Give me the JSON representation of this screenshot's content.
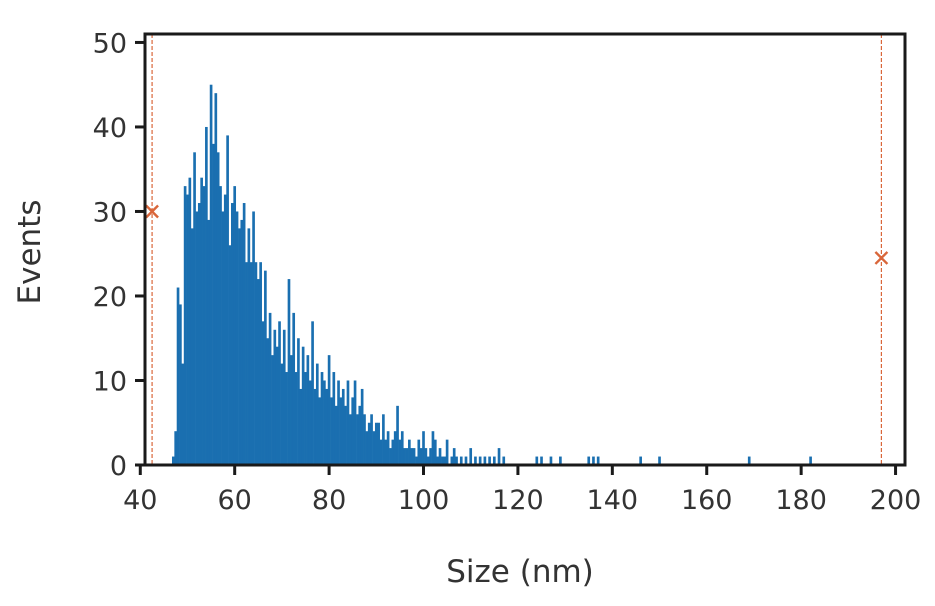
{
  "chart_data": {
    "type": "bar",
    "xlabel": "Size (nm)",
    "ylabel": "Events",
    "xlim": [
      41,
      202
    ],
    "ylim": [
      0,
      51
    ],
    "xticks": [
      40,
      60,
      80,
      100,
      120,
      140,
      160,
      180,
      200
    ],
    "yticks": [
      0,
      10,
      20,
      30,
      40,
      50
    ],
    "bin_width": 0.5,
    "series": [
      {
        "color": "#1a6fb0",
        "points": [
          [
            47.0,
            1
          ],
          [
            47.5,
            4
          ],
          [
            48.0,
            21
          ],
          [
            48.5,
            19
          ],
          [
            49.0,
            12
          ],
          [
            49.5,
            33
          ],
          [
            50.0,
            32
          ],
          [
            50.5,
            34
          ],
          [
            51.0,
            28
          ],
          [
            51.5,
            37
          ],
          [
            52.0,
            30
          ],
          [
            52.5,
            31
          ],
          [
            53.0,
            34
          ],
          [
            53.5,
            33
          ],
          [
            54.0,
            40
          ],
          [
            54.5,
            29
          ],
          [
            55.0,
            45
          ],
          [
            55.5,
            38
          ],
          [
            56.0,
            44
          ],
          [
            56.5,
            37
          ],
          [
            57.0,
            33
          ],
          [
            57.5,
            30
          ],
          [
            58.0,
            32
          ],
          [
            58.5,
            39
          ],
          [
            59.0,
            26
          ],
          [
            59.5,
            31
          ],
          [
            60.0,
            33
          ],
          [
            60.5,
            30
          ],
          [
            61.0,
            28
          ],
          [
            61.5,
            29
          ],
          [
            62.0,
            31
          ],
          [
            62.5,
            24
          ],
          [
            63.0,
            28
          ],
          [
            63.5,
            24
          ],
          [
            64.0,
            30
          ],
          [
            64.5,
            24
          ],
          [
            65.0,
            22
          ],
          [
            65.5,
            24
          ],
          [
            66.0,
            17
          ],
          [
            66.5,
            23
          ],
          [
            67.0,
            15
          ],
          [
            67.5,
            18
          ],
          [
            68.0,
            13
          ],
          [
            68.5,
            16
          ],
          [
            69.0,
            14
          ],
          [
            69.5,
            17
          ],
          [
            70.0,
            12
          ],
          [
            70.5,
            16
          ],
          [
            71.0,
            11
          ],
          [
            71.5,
            22
          ],
          [
            72.0,
            13
          ],
          [
            72.5,
            18
          ],
          [
            73.0,
            11
          ],
          [
            73.5,
            15
          ],
          [
            74.0,
            9
          ],
          [
            74.5,
            14
          ],
          [
            75.0,
            11
          ],
          [
            75.5,
            13
          ],
          [
            76.0,
            10
          ],
          [
            76.5,
            17
          ],
          [
            77.0,
            9
          ],
          [
            77.5,
            12
          ],
          [
            78.0,
            8
          ],
          [
            78.5,
            11
          ],
          [
            79.0,
            10
          ],
          [
            79.5,
            9
          ],
          [
            80.0,
            13
          ],
          [
            80.5,
            8
          ],
          [
            81.0,
            11
          ],
          [
            81.5,
            7
          ],
          [
            82.0,
            10
          ],
          [
            82.5,
            8
          ],
          [
            83.0,
            9
          ],
          [
            83.5,
            7
          ],
          [
            84.0,
            10
          ],
          [
            84.5,
            6
          ],
          [
            85.0,
            8
          ],
          [
            85.5,
            10
          ],
          [
            86.0,
            6
          ],
          [
            86.5,
            7
          ],
          [
            87.0,
            9
          ],
          [
            87.5,
            6
          ],
          [
            88.0,
            4
          ],
          [
            88.5,
            5
          ],
          [
            89.0,
            6
          ],
          [
            89.5,
            4
          ],
          [
            90.0,
            5
          ],
          [
            90.5,
            5
          ],
          [
            91.0,
            3
          ],
          [
            91.5,
            6
          ],
          [
            92.0,
            3
          ],
          [
            92.5,
            4
          ],
          [
            93.0,
            2
          ],
          [
            93.5,
            3
          ],
          [
            94.0,
            4
          ],
          [
            94.5,
            7
          ],
          [
            95.0,
            3
          ],
          [
            95.5,
            4
          ],
          [
            96.0,
            2
          ],
          [
            96.5,
            2
          ],
          [
            97.0,
            3
          ],
          [
            97.5,
            2
          ],
          [
            98.0,
            2
          ],
          [
            98.5,
            1
          ],
          [
            99.0,
            3
          ],
          [
            99.5,
            2
          ],
          [
            100.0,
            4
          ],
          [
            100.5,
            2
          ],
          [
            101.0,
            1
          ],
          [
            101.5,
            2
          ],
          [
            102.0,
            4
          ],
          [
            102.5,
            3
          ],
          [
            103.0,
            1
          ],
          [
            103.5,
            2
          ],
          [
            104.0,
            1
          ],
          [
            104.5,
            1
          ],
          [
            105.0,
            3
          ],
          [
            106.0,
            1
          ],
          [
            106.5,
            2
          ],
          [
            107.0,
            1
          ],
          [
            108.0,
            1
          ],
          [
            109.0,
            1
          ],
          [
            110.0,
            2
          ],
          [
            111.0,
            1
          ],
          [
            112.0,
            1
          ],
          [
            113.0,
            1
          ],
          [
            114.0,
            1
          ],
          [
            115.0,
            1
          ],
          [
            116.0,
            2
          ],
          [
            117.0,
            1
          ],
          [
            124.0,
            1
          ],
          [
            125.0,
            1
          ],
          [
            127.0,
            1
          ],
          [
            129.0,
            1
          ],
          [
            135.0,
            1
          ],
          [
            136.0,
            1
          ],
          [
            137.0,
            1
          ],
          [
            146.0,
            1
          ],
          [
            150.0,
            1
          ],
          [
            169.0,
            1
          ],
          [
            182.0,
            1
          ]
        ]
      }
    ],
    "markers": [
      {
        "x": 42.5,
        "y": 30,
        "symbol": "x"
      },
      {
        "x": 197.0,
        "y": 24.5,
        "symbol": "x"
      }
    ],
    "grid": false
  }
}
